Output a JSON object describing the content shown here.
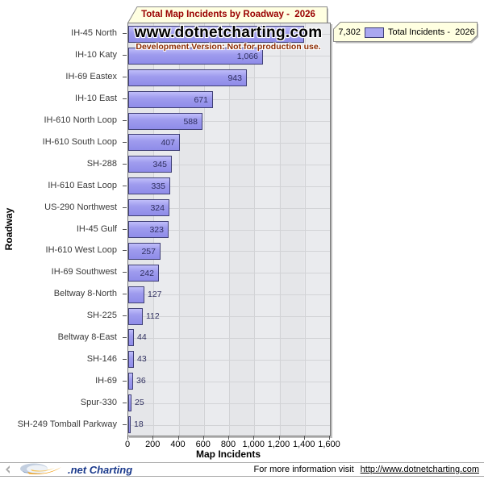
{
  "title": "Total Map Incidents by Roadway -  2026",
  "watermark": {
    "line1": "www.dotnetcharting.com",
    "line2": "Development Version: Not for production use."
  },
  "legend": {
    "total": "7,302",
    "series_label": "Total Incidents -  2026",
    "swatch_color": "#aaa8f0"
  },
  "axes": {
    "y_label": "Roadway",
    "x_label": "Map Incidents",
    "x_ticks": [
      "0",
      "200",
      "400",
      "600",
      "800",
      "1,000",
      "1,200",
      "1,400",
      "1,600"
    ]
  },
  "chart_data": {
    "type": "bar",
    "orientation": "horizontal",
    "title": "Total Map Incidents by Roadway - 2026",
    "xlabel": "Map Incidents",
    "ylabel": "Roadway",
    "xlim": [
      0,
      1600
    ],
    "grid": true,
    "legend_position": "top-right",
    "series_name": "Total Incidents - 2026",
    "total": 7302,
    "categories": [
      "IH-45 North",
      "IH-10 Katy",
      "IH-69 Eastex",
      "IH-10 East",
      "IH-610 North Loop",
      "IH-610 South Loop",
      "SH-288",
      "IH-610 East Loop",
      "US-290 Northwest",
      "IH-45 Gulf",
      "IH-610 West Loop",
      "IH-69 Southwest",
      "Beltway 8-North",
      "SH-225",
      "Beltway 8-East",
      "SH-146",
      "IH-69",
      "Spur-330",
      "SH-249 Tomball Parkway"
    ],
    "values": [
      1396,
      1066,
      943,
      671,
      588,
      407,
      345,
      335,
      324,
      323,
      257,
      242,
      127,
      112,
      44,
      43,
      36,
      25,
      18
    ],
    "value_labels": [
      "",
      "1,066",
      "943",
      "671",
      "588",
      "407",
      "345",
      "335",
      "324",
      "323",
      "257",
      "242",
      "127",
      "112",
      "44",
      "43",
      "36",
      "25",
      "18"
    ]
  },
  "footer": {
    "logo_text": ".net Charting",
    "info_text": "For more information visit",
    "link": "http://www.dotnetcharting.com"
  },
  "colors": {
    "bar_fill": "#9a97ec",
    "bar_border": "#3f3f75",
    "title_color": "#990000",
    "panel_bg": "#ffffe1",
    "plot_band_dark": "#e5e6e9",
    "plot_band_light": "#eaebee",
    "grid_line": "#d2d3d6"
  }
}
